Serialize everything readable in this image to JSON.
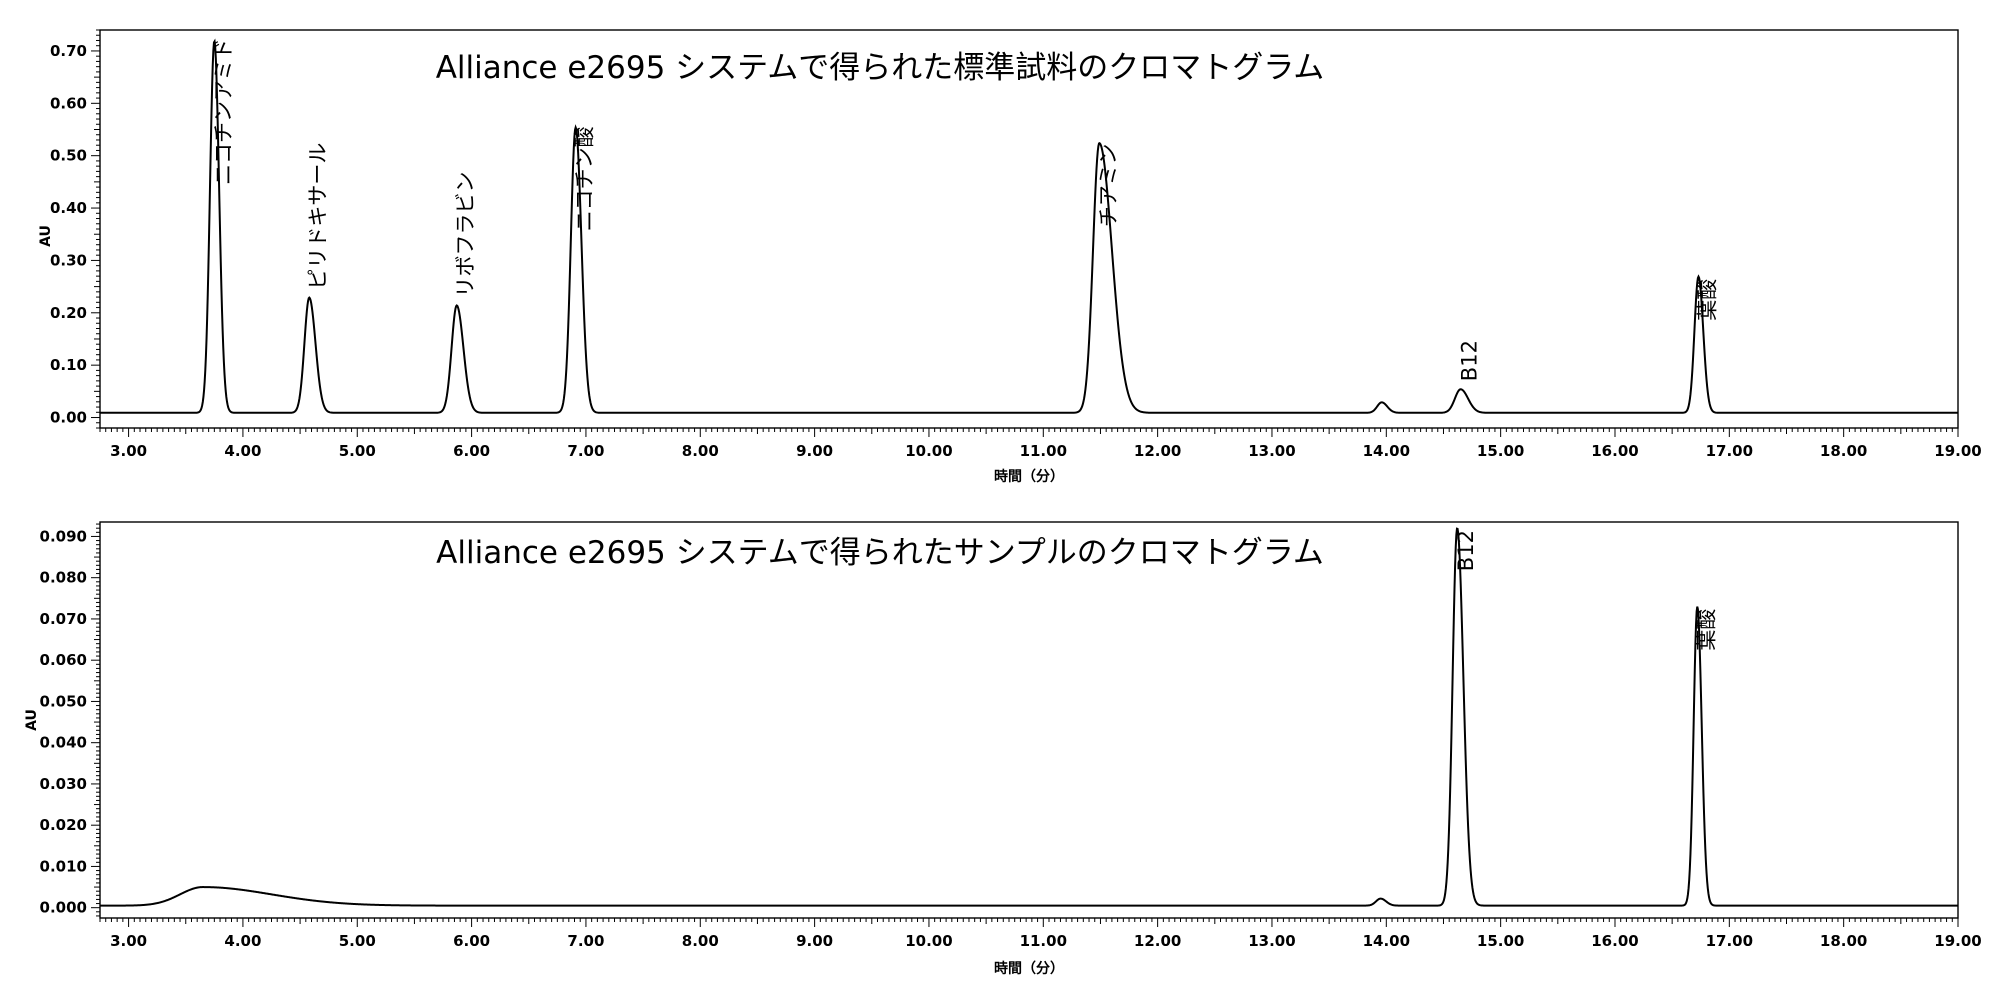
{
  "chart_data": [
    {
      "type": "line",
      "title": "Alliance e2695 システムで得られた標準試料のクロマトグラム",
      "xlabel": "時間（分）",
      "ylabel": "AU",
      "xlim": [
        2.75,
        19.0
      ],
      "ylim": [
        -0.02,
        0.74
      ],
      "x_ticks": [
        3.0,
        4.0,
        5.0,
        6.0,
        7.0,
        8.0,
        9.0,
        10.0,
        11.0,
        12.0,
        13.0,
        14.0,
        15.0,
        16.0,
        17.0,
        18.0,
        19.0
      ],
      "x_tick_labels": [
        "3.00",
        "4.00",
        "5.00",
        "6.00",
        "7.00",
        "8.00",
        "9.00",
        "10.00",
        "11.00",
        "12.00",
        "13.00",
        "14.00",
        "15.00",
        "16.00",
        "17.00",
        "18.00",
        "19.00"
      ],
      "y_ticks": [
        0.0,
        0.1,
        0.2,
        0.3,
        0.4,
        0.5,
        0.6,
        0.7
      ],
      "y_tick_labels": [
        "0.00",
        "0.10",
        "0.20",
        "0.30",
        "0.40",
        "0.50",
        "0.60",
        "0.70"
      ],
      "baseline": 0.009,
      "grid": false,
      "peaks": [
        {
          "label": "ニコチンアミド",
          "rt": 3.75,
          "height": 0.71,
          "sigma": 0.038,
          "tail": 1.1
        },
        {
          "label": "ピリドキサール",
          "rt": 4.58,
          "height": 0.22,
          "sigma": 0.042,
          "tail": 1.3
        },
        {
          "label": "リボフラビン",
          "rt": 5.87,
          "height": 0.205,
          "sigma": 0.045,
          "tail": 1.3
        },
        {
          "label": "ニコチン酸",
          "rt": 6.91,
          "height": 0.545,
          "sigma": 0.042,
          "tail": 1.2
        },
        {
          "label": "チアミン",
          "rt": 11.49,
          "height": 0.515,
          "sigma": 0.055,
          "tail": 2.0
        },
        {
          "label": "",
          "rt": 13.96,
          "height": 0.02,
          "sigma": 0.04,
          "tail": 1.2
        },
        {
          "label": "B12",
          "rt": 14.65,
          "height": 0.045,
          "sigma": 0.05,
          "tail": 1.3
        },
        {
          "label": "葉酸",
          "rt": 16.73,
          "height": 0.26,
          "sigma": 0.035,
          "tail": 1.2
        }
      ]
    },
    {
      "type": "line",
      "title": "Alliance e2695 システムで得られたサンプルのクロマトグラム",
      "xlabel": "時間（分）",
      "ylabel": "AU",
      "xlim": [
        2.75,
        19.0
      ],
      "ylim": [
        -0.0025,
        0.0935
      ],
      "x_ticks": [
        3.0,
        4.0,
        5.0,
        6.0,
        7.0,
        8.0,
        9.0,
        10.0,
        11.0,
        12.0,
        13.0,
        14.0,
        15.0,
        16.0,
        17.0,
        18.0,
        19.0
      ],
      "x_tick_labels": [
        "3.00",
        "4.00",
        "5.00",
        "6.00",
        "7.00",
        "8.00",
        "9.00",
        "10.00",
        "11.00",
        "12.00",
        "13.00",
        "14.00",
        "15.00",
        "16.00",
        "17.00",
        "18.00",
        "19.00"
      ],
      "y_ticks": [
        0.0,
        0.01,
        0.02,
        0.03,
        0.04,
        0.05,
        0.06,
        0.07,
        0.08,
        0.09
      ],
      "y_tick_labels": [
        "0.000",
        "0.010",
        "0.020",
        "0.030",
        "0.040",
        "0.050",
        "0.060",
        "0.070",
        "0.080",
        "0.090"
      ],
      "baseline": 0.0005,
      "grid": false,
      "peaks": [
        {
          "label": "",
          "rt": 3.65,
          "height": 0.0045,
          "sigma": 0.2,
          "tail": 3.0
        },
        {
          "label": "",
          "rt": 13.95,
          "height": 0.0017,
          "sigma": 0.04,
          "tail": 1.2
        },
        {
          "label": "B12",
          "rt": 14.62,
          "height": 0.0915,
          "sigma": 0.04,
          "tail": 1.35
        },
        {
          "label": "葉酸",
          "rt": 16.72,
          "height": 0.0725,
          "sigma": 0.032,
          "tail": 1.2
        }
      ]
    }
  ]
}
